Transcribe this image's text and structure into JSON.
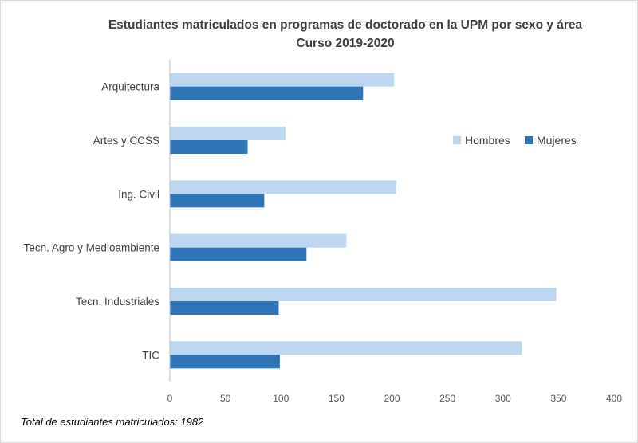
{
  "chart_data": {
    "type": "bar",
    "orientation": "horizontal",
    "title_lines": [
      "Estudiantes matriculados  en programas de doctorado  en la UPM por sexo y área",
      "Curso 2019-2020"
    ],
    "categories": [
      "Arquitectura",
      "Artes y CCSS",
      "Ing. Civil",
      "Tecn. Agro y Medioambiente",
      "Tecn. Industriales",
      "TIC"
    ],
    "series": [
      {
        "name": "Hombres",
        "color": "#bdd7ee",
        "values": [
          202,
          104,
          204,
          159,
          348,
          317
        ]
      },
      {
        "name": "Mujeres",
        "color": "#2e75b6",
        "values": [
          174,
          70,
          85,
          123,
          98,
          99
        ]
      }
    ],
    "xlim": [
      0,
      400
    ],
    "xticks": [
      0,
      50,
      100,
      150,
      200,
      250,
      300,
      350,
      400
    ],
    "grid": false,
    "legend_position": "right",
    "xlabel": "",
    "ylabel": ""
  },
  "footnote": "Total de estudiantes matriculados: 1982"
}
